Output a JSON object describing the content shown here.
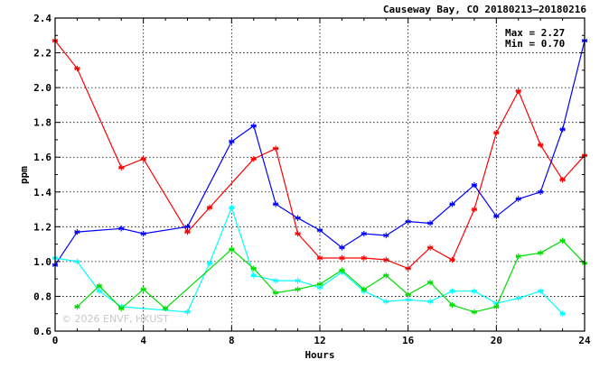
{
  "chart_data": {
    "type": "line",
    "title": "Causeway Bay, CO 20180213–20180216",
    "xlabel": "Hours",
    "ylabel": "ppm",
    "xlim": [
      0,
      24
    ],
    "ylim": [
      0.6,
      2.4
    ],
    "xticks": [
      0,
      4,
      8,
      12,
      16,
      20,
      24
    ],
    "yticks": [
      0.6,
      0.8,
      1.0,
      1.2,
      1.4,
      1.6,
      1.8,
      2.0,
      2.2,
      2.4
    ],
    "ytick_labels": [
      "0.6",
      "0.8",
      "1.0",
      "1.2",
      "1.4",
      "1.6",
      "1.8",
      "2.0",
      "2.2",
      "2.4"
    ],
    "grid": true,
    "stats": {
      "max": "Max = 2.27",
      "min": "Min = 0.70"
    },
    "watermark": "© 2026  ENVF, HKUST",
    "series": [
      {
        "color": "#ff0000",
        "points": [
          [
            0,
            2.27
          ],
          [
            1,
            2.11
          ],
          [
            3,
            1.54
          ],
          [
            4,
            1.59
          ],
          [
            6,
            1.17
          ],
          [
            7,
            1.31
          ],
          [
            9,
            1.59
          ],
          [
            10,
            1.65
          ],
          [
            11,
            1.16
          ],
          [
            12,
            1.02
          ],
          [
            13,
            1.02
          ],
          [
            14,
            1.02
          ],
          [
            15,
            1.01
          ],
          [
            16,
            0.96
          ],
          [
            17,
            1.08
          ],
          [
            18,
            1.01
          ],
          [
            19,
            1.3
          ],
          [
            20,
            1.74
          ],
          [
            21,
            1.98
          ],
          [
            22,
            1.67
          ],
          [
            23,
            1.47
          ],
          [
            24,
            1.61
          ]
        ]
      },
      {
        "color": "#0000ff",
        "points": [
          [
            0,
            0.98
          ],
          [
            1,
            1.17
          ],
          [
            3,
            1.19
          ],
          [
            4,
            1.16
          ],
          [
            6,
            1.2
          ],
          [
            8,
            1.69
          ],
          [
            9,
            1.78
          ],
          [
            10,
            1.33
          ],
          [
            11,
            1.25
          ],
          [
            12,
            1.18
          ],
          [
            13,
            1.08
          ],
          [
            14,
            1.16
          ],
          [
            15,
            1.15
          ],
          [
            16,
            1.23
          ],
          [
            17,
            1.22
          ],
          [
            18,
            1.33
          ],
          [
            19,
            1.44
          ],
          [
            20,
            1.26
          ],
          [
            21,
            1.36
          ],
          [
            22,
            1.4
          ],
          [
            23,
            1.76
          ],
          [
            24,
            2.27
          ]
        ]
      },
      {
        "color": "#00ffff",
        "points": [
          [
            0,
            1.02
          ],
          [
            1,
            1.0
          ],
          [
            2,
            0.83
          ],
          [
            3,
            0.74
          ],
          [
            6,
            0.71
          ],
          [
            7,
            0.99
          ],
          [
            8,
            1.31
          ],
          [
            9,
            0.92
          ],
          [
            10,
            0.89
          ],
          [
            11,
            0.89
          ],
          [
            12,
            0.85
          ],
          [
            13,
            0.94
          ],
          [
            14,
            0.83
          ],
          [
            15,
            0.77
          ],
          [
            16,
            0.78
          ],
          [
            17,
            0.77
          ],
          [
            18,
            0.83
          ],
          [
            19,
            0.83
          ],
          [
            20,
            0.76
          ],
          [
            21,
            0.79
          ],
          [
            22,
            0.83
          ],
          [
            23,
            0.7
          ]
        ]
      },
      {
        "color": "#00dd00",
        "points": [
          [
            1,
            0.74
          ],
          [
            2,
            0.86
          ],
          [
            3,
            0.73
          ],
          [
            4,
            0.84
          ],
          [
            5,
            0.73
          ],
          [
            8,
            1.07
          ],
          [
            9,
            0.96
          ],
          [
            10,
            0.82
          ],
          [
            11,
            0.84
          ],
          [
            12,
            0.87
          ],
          [
            13,
            0.95
          ],
          [
            14,
            0.84
          ],
          [
            15,
            0.92
          ],
          [
            16,
            0.81
          ],
          [
            17,
            0.88
          ],
          [
            18,
            0.75
          ],
          [
            19,
            0.71
          ],
          [
            20,
            0.74
          ],
          [
            21,
            1.03
          ],
          [
            22,
            1.05
          ],
          [
            23,
            1.12
          ],
          [
            24,
            0.99
          ]
        ]
      }
    ]
  }
}
